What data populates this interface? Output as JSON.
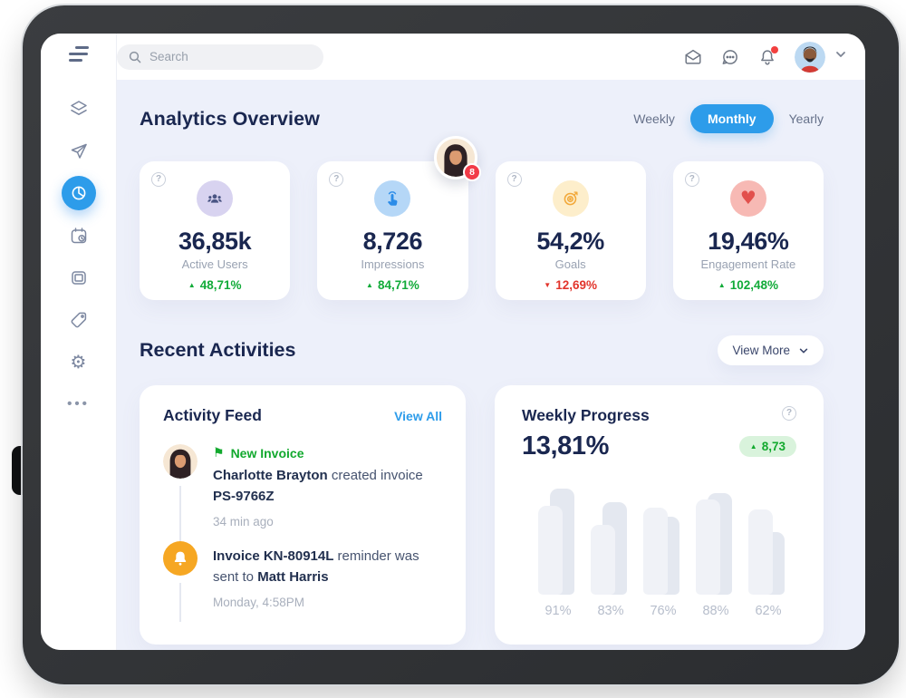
{
  "topbar": {
    "search_placeholder": "Search",
    "icons": [
      "mail",
      "chat",
      "notifications"
    ],
    "notification_dot": true
  },
  "sidebar": {
    "icons": [
      "layers",
      "send",
      "pie-chart",
      "calendar-clock",
      "gallery",
      "tag",
      "settings",
      "more"
    ],
    "active_icon": "pie-chart"
  },
  "overview": {
    "title": "Analytics Overview",
    "tabs": [
      {
        "label": "Weekly",
        "active": false
      },
      {
        "label": "Monthly",
        "active": true
      },
      {
        "label": "Yearly",
        "active": false
      }
    ],
    "stats": [
      {
        "value": "36,85k",
        "label": "Active Users",
        "arrow": "▲",
        "change": "48,71%",
        "direction": "up",
        "icon": "users",
        "icon_bg": "#D8D3F0",
        "icon_color": "#4A5584"
      },
      {
        "value": "8,726",
        "label": "Impressions",
        "arrow": "▲",
        "change": "84,71%",
        "direction": "up",
        "icon": "tap",
        "icon_bg": "#B5D7F7",
        "icon_color": "#2B8CE8"
      },
      {
        "value": "54,2%",
        "label": "Goals",
        "arrow": "▼",
        "change": "12,69%",
        "direction": "down",
        "icon": "target",
        "icon_bg": "#FDEECB",
        "icon_color": "#F2A93B"
      },
      {
        "value": "19,46%",
        "label": "Engagement Rate",
        "arrow": "▲",
        "change": "102,48%",
        "direction": "up",
        "icon": "heart",
        "icon_bg": "#F7B9B4",
        "icon_color": "#E2504C"
      }
    ]
  },
  "floating_avatar": {
    "badge": "8"
  },
  "recent": {
    "title": "Recent Activities",
    "view_more_label": "View More"
  },
  "activity_feed": {
    "title": "Activity Feed",
    "view_all_label": "View All",
    "items": [
      {
        "icon": "avatar-woman",
        "tag": "New Invoice",
        "tag_icon": "flag",
        "segments": [
          {
            "text": "Charlotte Brayton",
            "bold": true
          },
          {
            "text": " created invoice ",
            "bold": false
          },
          {
            "text": "PS-9766Z",
            "bold": true
          }
        ],
        "time": "34 min ago"
      },
      {
        "icon": "bell",
        "segments": [
          {
            "text": "Invoice KN-80914L",
            "bold": true
          },
          {
            "text": " reminder was sent to ",
            "bold": false
          },
          {
            "text": "Matt Harris",
            "bold": true
          }
        ],
        "time": "Monday, 4:58PM"
      }
    ]
  },
  "weekly_progress": {
    "title": "Weekly Progress",
    "value": "13,81%",
    "badge_arrow": "▲",
    "badge_value": "8,73"
  },
  "chart_data": {
    "type": "bar",
    "title": "Weekly Progress",
    "categories": [
      "91%",
      "83%",
      "76%",
      "88%",
      "62%"
    ],
    "series": [
      {
        "name": "previous",
        "values": [
          117,
          102,
          86,
          112,
          69
        ]
      },
      {
        "name": "current",
        "values": [
          98,
          77,
          96,
          105,
          94
        ]
      }
    ],
    "xlabel": "",
    "ylabel": "",
    "ylim": [
      0,
      120
    ],
    "grid": false,
    "legend": false,
    "bar_colors": {
      "previous": "#E4E8F0",
      "current": "#F0F2F7"
    }
  },
  "colors": {
    "accent_blue": "#2D9CEA",
    "green": "#12AB39",
    "red": "#E2342B",
    "navy": "#1A2750",
    "content_bg": "#EDF0FA"
  }
}
